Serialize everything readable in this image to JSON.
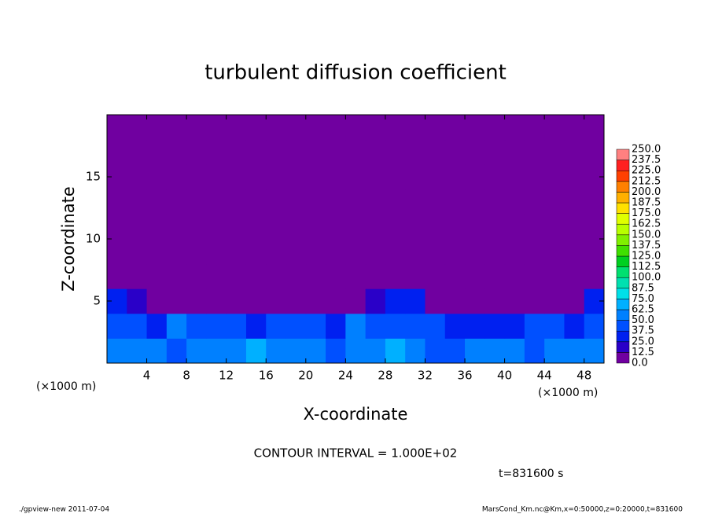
{
  "chart_data": {
    "type": "contour",
    "title": "turbulent diffusion coefficient",
    "x_label": "X-coordinate",
    "y_label": "Z-coordinate",
    "x_unit_left": "(×1000 m)",
    "x_unit_right": "(×1000 m)",
    "contour_note": "CONTOUR INTERVAL = 1.000E+02",
    "time_note": "t=831600 s",
    "footer_left": "./gpview-new   2011-07-04",
    "footer_right": "MarsCond_Km.nc@Km,x=0:50000,z=0:20000,t=831600",
    "xlim": [
      0,
      50
    ],
    "ylim": [
      0,
      20
    ],
    "xticks": [
      4,
      8,
      12,
      16,
      20,
      24,
      28,
      32,
      36,
      40,
      44,
      48
    ],
    "yticks": [
      5,
      10,
      15
    ],
    "x": [
      1,
      3,
      5,
      7,
      9,
      11,
      13,
      15,
      17,
      19,
      21,
      23,
      25,
      27,
      29,
      31,
      33,
      35,
      37,
      39,
      41,
      43,
      45,
      47,
      49
    ],
    "z": [
      1,
      3,
      5,
      7,
      9,
      11,
      13,
      15,
      17,
      19
    ],
    "values": [
      [
        55,
        60,
        50,
        45,
        55,
        60,
        50,
        65,
        60,
        55,
        50,
        45,
        55,
        60,
        65,
        50,
        45,
        40,
        50,
        55,
        60,
        45,
        55,
        60,
        50
      ],
      [
        40,
        45,
        35,
        50,
        45,
        40,
        45,
        35,
        40,
        45,
        40,
        35,
        50,
        45,
        40,
        45,
        40,
        35,
        25,
        30,
        35,
        40,
        45,
        30,
        45
      ],
      [
        30,
        15,
        10,
        8,
        10,
        8,
        10,
        12,
        10,
        8,
        10,
        10,
        12,
        15,
        30,
        25,
        10,
        8,
        10,
        8,
        8,
        10,
        8,
        10,
        25
      ],
      [
        10,
        8,
        6,
        5,
        5,
        5,
        5,
        5,
        5,
        5,
        5,
        5,
        5,
        5,
        8,
        6,
        5,
        5,
        5,
        5,
        5,
        5,
        5,
        5,
        8
      ],
      [
        8,
        5,
        4,
        4,
        4,
        4,
        5,
        5,
        5,
        5,
        4,
        4,
        5,
        5,
        6,
        5,
        6,
        5,
        5,
        4,
        5,
        5,
        4,
        4,
        5
      ],
      [
        4,
        3,
        3,
        3,
        4,
        3,
        3,
        3,
        3,
        3,
        3,
        4,
        3,
        3,
        4,
        3,
        3,
        4,
        3,
        3,
        3,
        3,
        3,
        3,
        4
      ],
      [
        3,
        3,
        3,
        3,
        3,
        3,
        3,
        3,
        3,
        3,
        3,
        3,
        3,
        3,
        3,
        3,
        3,
        3,
        3,
        3,
        3,
        3,
        3,
        3,
        3
      ],
      [
        2,
        2,
        2,
        2,
        2,
        2,
        2,
        2,
        2,
        2,
        2,
        2,
        2,
        2,
        2,
        2,
        2,
        2,
        2,
        2,
        2,
        2,
        2,
        2,
        2
      ],
      [
        2,
        2,
        2,
        2,
        2,
        2,
        2,
        2,
        2,
        2,
        2,
        2,
        2,
        2,
        2,
        2,
        2,
        2,
        2,
        2,
        2,
        2,
        2,
        2,
        2
      ],
      [
        1,
        1,
        1,
        1,
        1,
        1,
        1,
        1,
        1,
        1,
        1,
        1,
        1,
        1,
        1,
        1,
        1,
        1,
        1,
        1,
        1,
        1,
        1,
        1,
        1
      ]
    ],
    "levels": [
      {
        "value": 0,
        "label": "0.0"
      },
      {
        "value": 12.5,
        "label": "12.5"
      },
      {
        "value": 25,
        "label": "25.0"
      },
      {
        "value": 37.5,
        "label": "37.5"
      },
      {
        "value": 50,
        "label": "50.0"
      },
      {
        "value": 62.5,
        "label": "62.5"
      },
      {
        "value": 75,
        "label": "75.0"
      },
      {
        "value": 87.5,
        "label": "87.5"
      },
      {
        "value": 100,
        "label": "100.0"
      },
      {
        "value": 112.5,
        "label": "112.5"
      },
      {
        "value": 125,
        "label": "125.0"
      },
      {
        "value": 137.5,
        "label": "137.5"
      },
      {
        "value": 150,
        "label": "150.0"
      },
      {
        "value": 162.5,
        "label": "162.5"
      },
      {
        "value": 175,
        "label": "175.0"
      },
      {
        "value": 187.5,
        "label": "187.5"
      },
      {
        "value": 200,
        "label": "200.0"
      },
      {
        "value": 212.5,
        "label": "212.5"
      },
      {
        "value": 225,
        "label": "225.0"
      },
      {
        "value": 237.5,
        "label": "237.5"
      },
      {
        "value": 250,
        "label": "250.0"
      }
    ],
    "colors": [
      "#7000a0",
      "#2a00c8",
      "#0020f0",
      "#0050ff",
      "#0080ff",
      "#00b0ff",
      "#00e0e8",
      "#00e0b0",
      "#00e070",
      "#00d020",
      "#40e000",
      "#80f000",
      "#b8ff00",
      "#e0ff00",
      "#ffe000",
      "#ffb000",
      "#ff8000",
      "#ff4000",
      "#ff2020",
      "#ff8080"
    ]
  }
}
